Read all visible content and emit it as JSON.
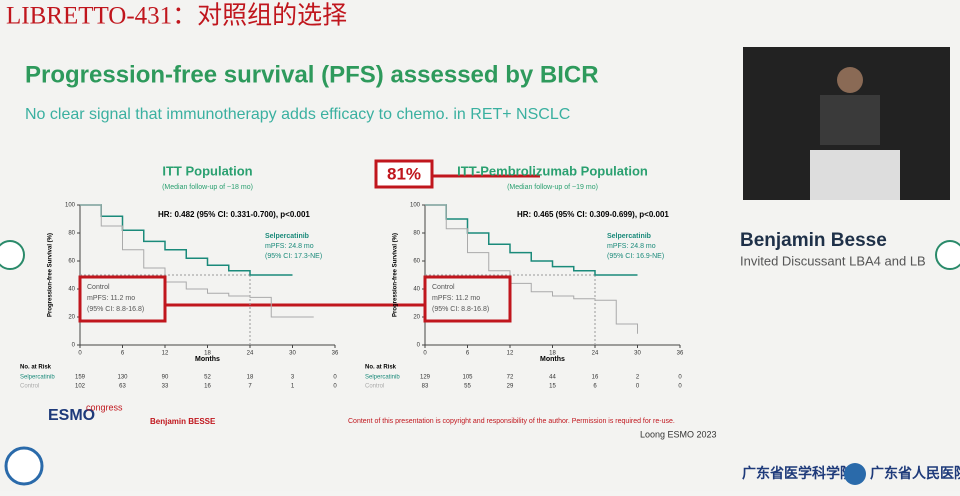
{
  "header": {
    "title": "LIBRETTO-431：对照组的选择"
  },
  "slide": {
    "title": "Progression-free survival (PFS) assessed by BICR",
    "subtitle": "No clear signal that immunotherapy adds efficacy to chemo. in RET+ NSCLC",
    "callout": "81%",
    "presenter": "Benjamin BESSE",
    "copyright": "Content of this presentation is copyright and responsibility of the author. Permission is required for re-use.",
    "source": "Loong ESMO 2023",
    "logo": "ESMO",
    "logo_sub": "congress"
  },
  "panels": [
    {
      "title": "ITT Population",
      "subtitle": "(Median follow-up of ~18 mo)",
      "hr": "HR: 0.482 (95% CI: 0.331-0.700), p<0.001",
      "ylabel": "Progression-free Survival (%)",
      "xlabel": "Months",
      "xlim": [
        0,
        36
      ],
      "xticks": [
        0,
        6,
        12,
        18,
        24,
        30,
        36
      ],
      "ylim": [
        0,
        100
      ],
      "yticks": [
        0,
        20,
        40,
        60,
        80,
        100
      ],
      "sel_label": [
        "Selpercatinib",
        "mPFS: 24.8 mo",
        "(95% CI: 17.3-NE)"
      ],
      "ctl_label": [
        "Control",
        "mPFS: 11.2 mo",
        "(95% CI: 8.8-16.8)"
      ],
      "series": [
        {
          "name": "Selpercatinib",
          "color": "#1a8a7a",
          "x": [
            0,
            3,
            6,
            9,
            12,
            15,
            18,
            21,
            24,
            30
          ],
          "y": [
            100,
            92,
            82,
            74,
            68,
            62,
            57,
            53,
            50,
            50
          ]
        },
        {
          "name": "Control",
          "color": "#aaaaaa",
          "x": [
            0,
            3,
            6,
            9,
            12,
            15,
            18,
            21,
            24,
            27,
            33
          ],
          "y": [
            100,
            85,
            68,
            55,
            45,
            40,
            37,
            35,
            34,
            20,
            20
          ]
        }
      ],
      "risk_title": "No. at Risk",
      "risk": [
        [
          159,
          130,
          90,
          52,
          18,
          3,
          0
        ],
        [
          102,
          63,
          33,
          16,
          7,
          1,
          0
        ]
      ]
    },
    {
      "title": "ITT-Pembrolizumab Population",
      "subtitle": "(Median follow-up of ~19 mo)",
      "hr": "HR: 0.465 (95% CI: 0.309-0.699), p<0.001",
      "ylabel": "Progression-free Survival (%)",
      "xlabel": "Months",
      "xlim": [
        0,
        36
      ],
      "xticks": [
        0,
        6,
        12,
        18,
        24,
        30,
        36
      ],
      "ylim": [
        0,
        100
      ],
      "yticks": [
        0,
        20,
        40,
        60,
        80,
        100
      ],
      "sel_label": [
        "Selpercatinib",
        "mPFS: 24.8 mo",
        "(95% CI: 16.9-NE)"
      ],
      "ctl_label": [
        "Control",
        "mPFS: 11.2 mo",
        "(95% CI: 8.8-16.8)"
      ],
      "series": [
        {
          "name": "Selpercatinib",
          "color": "#1a8a7a",
          "x": [
            0,
            3,
            6,
            9,
            12,
            15,
            18,
            21,
            24,
            30
          ],
          "y": [
            100,
            90,
            80,
            72,
            66,
            60,
            56,
            53,
            50,
            50
          ]
        },
        {
          "name": "Control",
          "color": "#aaaaaa",
          "x": [
            0,
            3,
            6,
            9,
            12,
            15,
            18,
            21,
            24,
            27,
            30
          ],
          "y": [
            100,
            83,
            66,
            53,
            44,
            38,
            35,
            33,
            32,
            15,
            8
          ]
        }
      ],
      "risk_title": "No. at Risk",
      "risk": [
        [
          129,
          105,
          72,
          44,
          16,
          2,
          0
        ],
        [
          83,
          55,
          29,
          15,
          6,
          0,
          0
        ]
      ]
    }
  ],
  "speaker": {
    "name": "Benjamin Besse",
    "role": "Invited Discussant LBA4 and LB"
  },
  "footer": {
    "org1": "广东省医学科学院",
    "org2": "广东省人民医院"
  }
}
